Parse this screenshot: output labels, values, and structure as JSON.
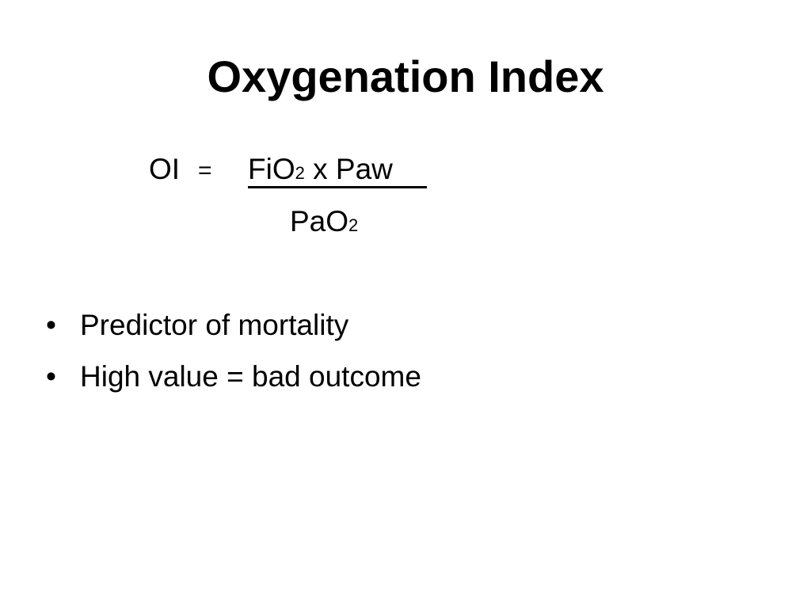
{
  "slide": {
    "title": "Oxygenation Index",
    "formula": {
      "lhs": "OI",
      "equals": "=",
      "numerator": {
        "a": "FiO",
        "a_sub": "2",
        "rest": " x Paw"
      },
      "denominator": {
        "a": "PaO",
        "a_sub": "2"
      }
    },
    "bullets": [
      {
        "marker": "•",
        "text": "Predictor of mortality"
      },
      {
        "marker": "•",
        "text": "High value = bad outcome"
      }
    ]
  }
}
